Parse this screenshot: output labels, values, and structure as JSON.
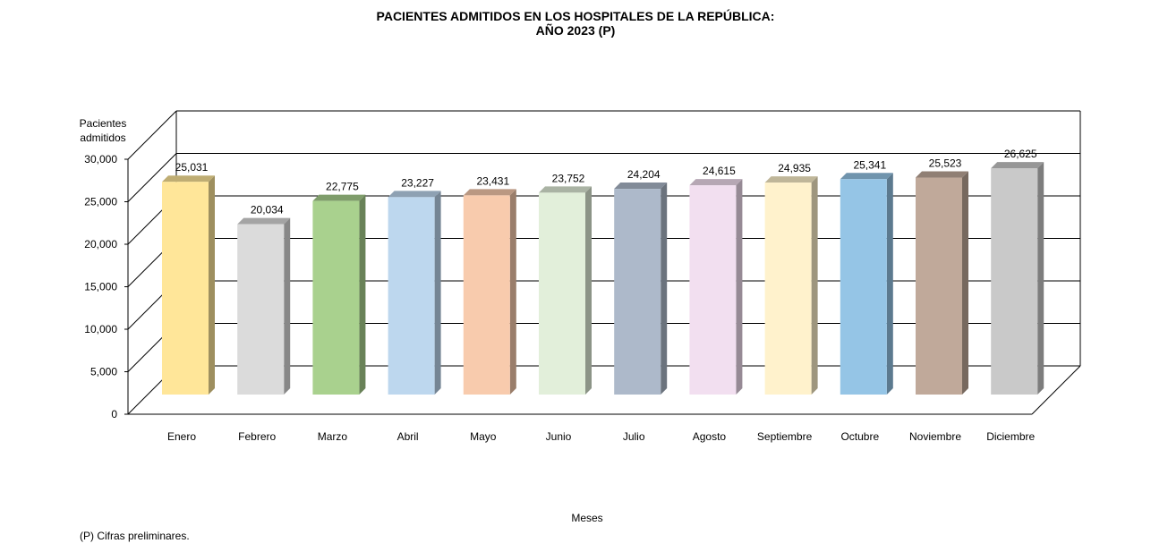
{
  "chart_data": {
    "type": "bar",
    "title_line1": "PACIENTES ADMITIDOS EN LOS HOSPITALES DE LA REPÚBLICA:",
    "title_line2": "AÑO 2023 (P)",
    "xlabel": "Meses",
    "ylabel_line1": "Pacientes",
    "ylabel_line2": "admitidos",
    "ylim": [
      0,
      30000
    ],
    "yticks": [
      "0",
      "5,000",
      "10,000",
      "15,000",
      "20,000",
      "25,000",
      "30,000"
    ],
    "grid": true,
    "three_d": true,
    "categories": [
      "Enero",
      "Febrero",
      "Marzo",
      "Abril",
      "Mayo",
      "Junio",
      "Julio",
      "Agosto",
      "Septiembre",
      "Octubre",
      "Noviembre",
      "Diciembre"
    ],
    "values": [
      25031,
      20034,
      22775,
      23227,
      23431,
      23752,
      24204,
      24615,
      24935,
      25341,
      25523,
      26625
    ],
    "value_labels": [
      "25,031",
      "20,034",
      "22,775",
      "23,227",
      "23,431",
      "23,752",
      "24,204",
      "24,615",
      "24,935",
      "25,341",
      "25,523",
      "26,625"
    ],
    "colors": [
      "#FFE699",
      "#DBDBDB",
      "#A9D18E",
      "#BDD7EE",
      "#F8CBAD",
      "#E2EFDA",
      "#ADB9CA",
      "#F2DFF0",
      "#FFF2CC",
      "#95C5E6",
      "#C0A99A",
      "#C9C9C9"
    ]
  },
  "footnote": "(P) Cifras  preliminares."
}
